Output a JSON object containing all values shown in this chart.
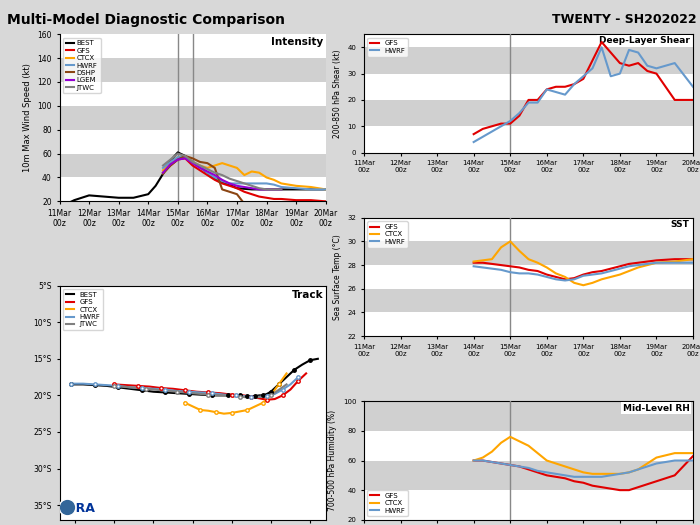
{
  "title_left": "Multi-Model Diagnostic Comparison",
  "title_right": "TWENTY - SH202022",
  "dates": [
    "11Mar\n00z",
    "12Mar\n00z",
    "13Mar\n00z",
    "14Mar\n00z",
    "15Mar\n00z",
    "16Mar\n00z",
    "17Mar\n00z",
    "18Mar\n00z",
    "19Mar\n00z",
    "20Mar\n00z"
  ],
  "colors": {
    "BEST": "#000000",
    "GFS": "#e00000",
    "CTCX": "#ffa500",
    "HWRF": "#6699cc",
    "DSHP": "#8b4513",
    "LGEM": "#9400d3",
    "JTWC": "#808080"
  },
  "intensity": {
    "BEST_x": [
      0,
      0.5,
      1,
      1.5,
      2,
      2.5,
      3,
      3.25,
      3.5,
      3.75,
      4,
      4.25,
      4.5,
      4.75,
      5,
      5.25,
      5.5,
      5.75,
      6,
      6.5,
      7,
      7.5,
      8,
      8.5,
      9
    ],
    "BEST_y": [
      15,
      21,
      25,
      24,
      23,
      23,
      26,
      33,
      43,
      54,
      61,
      58,
      53,
      49,
      44,
      39,
      36,
      34,
      31,
      30,
      30,
      30,
      30,
      30,
      30
    ],
    "GFS_x": [
      3.5,
      3.75,
      4,
      4.25,
      4.5,
      4.75,
      5,
      5.25,
      5.5,
      5.75,
      6,
      6.25,
      6.5,
      6.75,
      7,
      7.25,
      7.5,
      8,
      8.5,
      9
    ],
    "GFS_y": [
      44,
      50,
      55,
      56,
      50,
      46,
      42,
      38,
      35,
      33,
      31,
      28,
      26,
      24,
      23,
      22,
      22,
      21,
      21,
      20
    ],
    "CTCX_x": [
      3.5,
      3.75,
      4,
      4.25,
      4.5,
      4.75,
      5,
      5.25,
      5.5,
      5.75,
      6,
      6.25,
      6.5,
      6.75,
      7,
      7.25,
      7.5,
      8,
      8.5,
      9
    ],
    "CTCX_y": [
      46,
      52,
      57,
      58,
      53,
      50,
      48,
      50,
      52,
      50,
      48,
      42,
      45,
      44,
      40,
      38,
      35,
      33,
      32,
      30
    ],
    "HWRF_x": [
      3.5,
      3.75,
      4,
      4.25,
      4.5,
      4.75,
      5,
      5.25,
      5.5,
      5.75,
      6,
      6.25,
      6.5,
      6.75,
      7,
      7.25,
      7.5,
      8,
      8.5,
      9
    ],
    "HWRF_y": [
      48,
      53,
      57,
      58,
      53,
      49,
      44,
      40,
      37,
      35,
      35,
      35,
      35,
      35,
      35,
      34,
      32,
      31,
      30,
      30
    ],
    "DSHP_x": [
      3.5,
      3.75,
      4,
      4.25,
      4.5,
      4.75,
      5,
      5.25,
      5.5,
      5.75,
      6,
      6.25,
      6.5,
      6.75,
      7,
      7.5
    ],
    "DSHP_y": [
      43,
      50,
      55,
      58,
      56,
      53,
      52,
      48,
      30,
      28,
      26,
      18,
      18,
      17,
      17,
      17
    ],
    "LGEM_x": [
      3.5,
      3.75,
      4,
      4.25,
      4.5,
      4.75,
      5,
      5.25,
      5.5,
      5.75,
      6,
      6.25,
      6.5,
      6.75,
      7,
      7.25,
      7.5
    ],
    "LGEM_y": [
      44,
      51,
      55,
      56,
      52,
      48,
      45,
      42,
      38,
      35,
      33,
      32,
      31,
      30,
      30,
      30,
      30
    ],
    "JTWC_x": [
      3.5,
      3.75,
      4,
      4.25,
      4.5,
      4.75,
      5,
      5.25,
      5.5,
      5.75,
      6,
      6.25,
      6.5,
      6.75,
      7,
      7.25,
      7.5
    ],
    "JTWC_y": [
      50,
      55,
      60,
      58,
      53,
      50,
      47,
      44,
      42,
      39,
      37,
      35,
      33,
      31,
      30,
      30,
      30
    ]
  },
  "shear": {
    "GFS_x": [
      3,
      3.25,
      3.5,
      3.75,
      4,
      4.25,
      4.5,
      4.75,
      5,
      5.25,
      5.5,
      5.75,
      6,
      6.25,
      6.5,
      6.75,
      7,
      7.25,
      7.5,
      7.75,
      8,
      8.5,
      9
    ],
    "GFS_y": [
      7,
      9,
      10,
      11,
      11,
      14,
      20,
      20,
      24,
      25,
      25,
      26,
      28,
      35,
      42,
      38,
      34,
      33,
      34,
      31,
      30,
      20,
      20
    ],
    "HWRF_x": [
      3,
      3.25,
      3.5,
      3.75,
      4,
      4.25,
      4.5,
      4.75,
      5,
      5.25,
      5.5,
      5.75,
      6,
      6.25,
      6.5,
      6.75,
      7,
      7.25,
      7.5,
      7.75,
      8,
      8.5,
      9
    ],
    "HWRF_y": [
      4,
      6,
      8,
      10,
      12,
      15,
      19,
      19,
      24,
      23,
      22,
      26,
      29,
      32,
      40,
      29,
      30,
      39,
      38,
      33,
      32,
      34,
      25
    ]
  },
  "sst": {
    "GFS_x": [
      3,
      3.25,
      3.5,
      3.75,
      4,
      4.25,
      4.5,
      4.75,
      5,
      5.25,
      5.5,
      5.75,
      6,
      6.25,
      6.5,
      6.75,
      7,
      7.25,
      7.5,
      7.75,
      8,
      8.5,
      9
    ],
    "GFS_y": [
      28.2,
      28.2,
      28.1,
      28.0,
      27.9,
      27.8,
      27.6,
      27.5,
      27.2,
      27.0,
      26.8,
      26.9,
      27.2,
      27.4,
      27.5,
      27.7,
      27.9,
      28.1,
      28.2,
      28.3,
      28.4,
      28.5,
      28.5
    ],
    "CTCX_x": [
      3,
      3.25,
      3.5,
      3.75,
      4,
      4.25,
      4.5,
      4.75,
      5,
      5.25,
      5.5,
      5.75,
      6,
      6.25,
      6.5,
      6.75,
      7,
      7.25,
      7.5,
      7.75,
      8,
      8.5,
      9
    ],
    "CTCX_y": [
      28.3,
      28.4,
      28.5,
      29.5,
      30.0,
      29.2,
      28.5,
      28.2,
      27.8,
      27.3,
      27.0,
      26.5,
      26.3,
      26.5,
      26.8,
      27.0,
      27.2,
      27.5,
      27.8,
      28.0,
      28.2,
      28.3,
      28.5
    ],
    "HWRF_x": [
      3,
      3.25,
      3.5,
      3.75,
      4,
      4.25,
      4.5,
      4.75,
      5,
      5.25,
      5.5,
      5.75,
      6,
      6.25,
      6.5,
      6.75,
      7,
      7.25,
      7.5,
      7.75,
      8,
      8.5,
      9
    ],
    "HWRF_y": [
      27.9,
      27.8,
      27.7,
      27.6,
      27.4,
      27.3,
      27.3,
      27.2,
      27.0,
      26.8,
      26.7,
      26.8,
      27.1,
      27.2,
      27.3,
      27.5,
      27.7,
      27.9,
      28.0,
      28.1,
      28.2,
      28.2,
      28.2
    ]
  },
  "rh": {
    "GFS_x": [
      3,
      3.25,
      3.5,
      3.75,
      4,
      4.25,
      4.5,
      4.75,
      5,
      5.25,
      5.5,
      5.75,
      6,
      6.25,
      6.5,
      6.75,
      7,
      7.25,
      7.5,
      7.75,
      8,
      8.5,
      9
    ],
    "GFS_y": [
      60,
      60,
      59,
      58,
      57,
      56,
      54,
      52,
      50,
      49,
      48,
      46,
      45,
      43,
      42,
      41,
      40,
      40,
      42,
      44,
      46,
      50,
      63
    ],
    "CTCX_x": [
      3,
      3.25,
      3.5,
      3.75,
      4,
      4.25,
      4.5,
      4.75,
      5,
      5.25,
      5.5,
      5.75,
      6,
      6.25,
      6.5,
      6.75,
      7,
      7.25,
      7.5,
      7.75,
      8,
      8.5,
      9
    ],
    "CTCX_y": [
      60,
      62,
      66,
      72,
      76,
      73,
      70,
      65,
      60,
      58,
      56,
      54,
      52,
      51,
      51,
      51,
      51,
      52,
      54,
      58,
      62,
      65,
      65
    ],
    "HWRF_x": [
      3,
      3.25,
      3.5,
      3.75,
      4,
      4.25,
      4.5,
      4.75,
      5,
      5.25,
      5.5,
      5.75,
      6,
      6.25,
      6.5,
      6.75,
      7,
      7.25,
      7.5,
      7.75,
      8,
      8.5,
      9
    ],
    "HWRF_y": [
      60,
      60,
      59,
      58,
      57,
      56,
      55,
      53,
      52,
      51,
      50,
      49,
      49,
      49,
      49,
      50,
      51,
      52,
      54,
      56,
      58,
      60,
      60
    ]
  },
  "track": {
    "BEST_lon": [
      69.5,
      71.0,
      72.5,
      74.0,
      75.5,
      77.0,
      78.5,
      80.0,
      81.5,
      83.0,
      84.5,
      86.0,
      87.5,
      88.5,
      89.5,
      90.5,
      91.0,
      91.5,
      92.0,
      92.5,
      93.0,
      93.5,
      94.0,
      94.5,
      95.0,
      95.5,
      96.0,
      97.0,
      98.0,
      99.0,
      100.0,
      101.0
    ],
    "BEST_lat": [
      -18.5,
      -18.5,
      -18.6,
      -18.7,
      -18.9,
      -19.1,
      -19.3,
      -19.5,
      -19.6,
      -19.7,
      -19.8,
      -19.9,
      -20.0,
      -20.0,
      -20.0,
      -20.0,
      -20.0,
      -20.1,
      -20.1,
      -20.1,
      -20.1,
      -20.0,
      -20.0,
      -19.8,
      -19.5,
      -19.0,
      -18.5,
      -17.5,
      -16.5,
      -15.8,
      -15.2,
      -15.0
    ],
    "GFS_lon": [
      75.0,
      76.5,
      78.0,
      79.5,
      81.0,
      82.5,
      84.0,
      85.5,
      87.0,
      88.5,
      90.0,
      91.5,
      92.5,
      93.5,
      94.5,
      95.5,
      96.5,
      97.5,
      98.5,
      99.5
    ],
    "GFS_lat": [
      -18.5,
      -18.6,
      -18.7,
      -18.8,
      -19.0,
      -19.1,
      -19.3,
      -19.5,
      -19.6,
      -19.7,
      -19.9,
      -20.0,
      -20.2,
      -20.4,
      -20.6,
      -20.5,
      -20.0,
      -19.2,
      -18.0,
      -17.0
    ],
    "CTCX_lon": [
      84.0,
      85.0,
      86.0,
      87.0,
      88.0,
      89.0,
      90.0,
      91.0,
      92.0,
      93.0,
      94.0,
      95.0,
      96.0,
      97.0
    ],
    "CTCX_lat": [
      -21.0,
      -21.5,
      -22.0,
      -22.1,
      -22.3,
      -22.5,
      -22.4,
      -22.2,
      -22.0,
      -21.5,
      -21.0,
      -20.0,
      -18.5,
      -17.0
    ],
    "HWRF_lon": [
      69.5,
      71.0,
      72.5,
      74.0,
      75.5,
      77.0,
      78.5,
      80.0,
      81.5,
      83.0,
      84.5,
      86.0,
      87.5,
      89.0,
      90.5,
      91.5,
      92.5,
      93.5,
      94.5,
      95.5,
      96.5,
      97.5,
      98.5
    ],
    "HWRF_lat": [
      -18.4,
      -18.4,
      -18.5,
      -18.6,
      -18.7,
      -18.9,
      -19.0,
      -19.1,
      -19.2,
      -19.4,
      -19.5,
      -19.6,
      -19.7,
      -19.9,
      -20.0,
      -20.1,
      -20.2,
      -20.2,
      -20.1,
      -19.8,
      -19.2,
      -18.5,
      -17.5
    ],
    "JTWC_lon": [
      75.0,
      77.0,
      79.0,
      81.0,
      83.0,
      85.0,
      87.0,
      89.0,
      91.0,
      93.0,
      95.0,
      97.0
    ],
    "JTWC_lat": [
      -18.7,
      -18.9,
      -19.1,
      -19.3,
      -19.5,
      -19.7,
      -19.9,
      -20.0,
      -20.2,
      -20.3,
      -20.0,
      -18.5
    ]
  }
}
